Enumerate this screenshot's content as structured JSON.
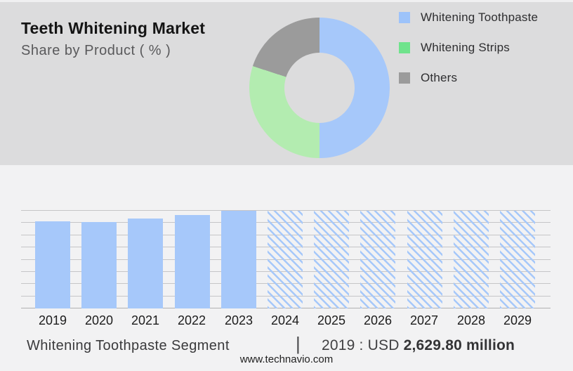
{
  "header": {
    "title": "Teeth Whitening Market",
    "subtitle": "Share by Product ( % )"
  },
  "legend": {
    "items": [
      {
        "label": "Whitening Toothpaste",
        "color": "#9dc3fa"
      },
      {
        "label": "Whitening Strips",
        "color": "#6fe38c"
      },
      {
        "label": "Others",
        "color": "#9b9b9b"
      }
    ]
  },
  "chart_data": [
    {
      "type": "pie",
      "subtype": "donut",
      "title": "Share by Product ( % )",
      "slices": [
        {
          "label": "Whitening Toothpaste",
          "value": 50,
          "color": "#a6c8fa"
        },
        {
          "label": "Whitening Strips",
          "value": 30,
          "color": "#b3ecb0"
        },
        {
          "label": "Others",
          "value": 20,
          "color": "#9b9b9b"
        }
      ],
      "legend_position": "right"
    },
    {
      "type": "bar",
      "title": "Whitening Toothpaste Segment",
      "categories": [
        "2019",
        "2020",
        "2021",
        "2022",
        "2023",
        "2024",
        "2025",
        "2026",
        "2027",
        "2028",
        "2029"
      ],
      "values": [
        89,
        88.5,
        92,
        96,
        100,
        100,
        100,
        100,
        100,
        100,
        100
      ],
      "bar_styles": [
        "solid",
        "solid",
        "solid",
        "solid",
        "solid",
        "hatched",
        "hatched",
        "hatched",
        "hatched",
        "hatched",
        "hatched"
      ],
      "bar_color": "#a6c8fa",
      "xlabel": "",
      "ylabel": "",
      "ylim": [
        0,
        100
      ],
      "grid": true
    }
  ],
  "footer": {
    "segment_label": "Whitening Toothpaste Segment",
    "separator": "|",
    "value_prefix": "2019 : USD",
    "value_bold": "2,629.80 million",
    "website": "www.technavio.com"
  }
}
